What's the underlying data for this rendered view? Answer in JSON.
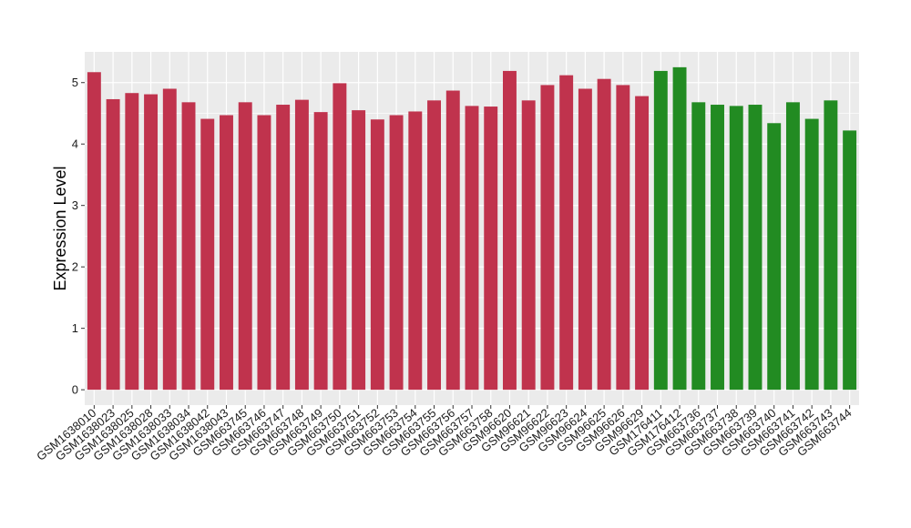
{
  "chart_data": {
    "type": "bar",
    "ylabel": "Expression Level",
    "xlabel": "",
    "ylim": [
      -0.25,
      5.5
    ],
    "yticks": [
      0,
      1,
      2,
      3,
      4,
      5
    ],
    "grid": true,
    "background": "#ebebeb",
    "categories": [
      "GSM1638010",
      "GSM1638023",
      "GSM1638025",
      "GSM1638028",
      "GSM1638033",
      "GSM1638034",
      "GSM1638042",
      "GSM1638043",
      "GSM663745",
      "GSM663746",
      "GSM663747",
      "GSM663748",
      "GSM663749",
      "GSM663750",
      "GSM663751",
      "GSM663752",
      "GSM663753",
      "GSM663754",
      "GSM663755",
      "GSM663756",
      "GSM663757",
      "GSM663758",
      "GSM96620",
      "GSM96621",
      "GSM96622",
      "GSM96623",
      "GSM96624",
      "GSM96625",
      "GSM96626",
      "GSM96629",
      "GSM176411",
      "GSM176412",
      "GSM663736",
      "GSM663737",
      "GSM663738",
      "GSM663739",
      "GSM663740",
      "GSM663741",
      "GSM663742",
      "GSM663743",
      "GSM663744"
    ],
    "values": [
      5.17,
      4.73,
      4.83,
      4.81,
      4.9,
      4.68,
      4.41,
      4.47,
      4.68,
      4.47,
      4.64,
      4.72,
      4.52,
      4.99,
      4.55,
      4.4,
      4.47,
      4.53,
      4.71,
      4.87,
      4.62,
      4.61,
      5.19,
      4.71,
      4.96,
      5.12,
      4.9,
      5.06,
      4.96,
      4.78,
      5.19,
      5.25,
      4.68,
      4.64,
      4.62,
      4.64,
      4.34,
      4.68,
      4.41,
      4.71,
      4.22
    ],
    "groups": [
      "red",
      "red",
      "red",
      "red",
      "red",
      "red",
      "red",
      "red",
      "red",
      "red",
      "red",
      "red",
      "red",
      "red",
      "red",
      "red",
      "red",
      "red",
      "red",
      "red",
      "red",
      "red",
      "red",
      "red",
      "red",
      "red",
      "red",
      "red",
      "red",
      "red",
      "green",
      "green",
      "green",
      "green",
      "green",
      "green",
      "green",
      "green",
      "green",
      "green",
      "green"
    ],
    "colors": {
      "red": "#c0334d",
      "green": "#228b22"
    }
  }
}
